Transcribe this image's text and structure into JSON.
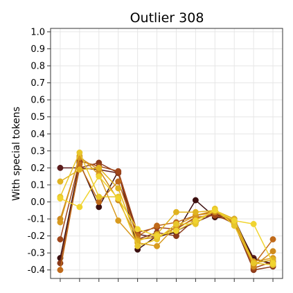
{
  "chart_data": {
    "type": "line",
    "title": "Outlier 308",
    "xlabel": "",
    "ylabel": "With special tokens",
    "ylim": [
      -0.45,
      1.02
    ],
    "yticks": [
      1.0,
      0.9,
      0.8,
      0.7,
      0.6,
      0.5,
      0.4,
      0.3,
      0.2,
      0.1,
      0.0,
      -0.1,
      -0.2,
      -0.3,
      -0.4
    ],
    "ytick_labels": [
      "1.0",
      "0.9",
      "0.8",
      "0.7",
      "0.6",
      "0.5",
      "0.4",
      "0.3",
      "0.2",
      "0.1",
      "0.0",
      "-0.1",
      "-0.2",
      "-0.3",
      "-0.4"
    ],
    "x": [
      0,
      1,
      2,
      3,
      4,
      5,
      6,
      7,
      8,
      9,
      10,
      11
    ],
    "x_tick_labels": [
      "",
      "",
      "",
      "",
      "",
      "",
      "",
      "",
      "",
      "",
      "",
      ""
    ],
    "grid": true,
    "legend": "none",
    "series": [
      {
        "color": "#5c1d1d",
        "values": [
          0.2,
          0.2,
          0.19,
          0.17,
          -0.19,
          -0.21,
          -0.17,
          -0.12,
          -0.07,
          -0.11,
          -0.33,
          -0.37
        ]
      },
      {
        "color": "#3d1010",
        "values": [
          -0.33,
          0.23,
          -0.03,
          0.18,
          -0.28,
          -0.2,
          -0.18,
          0.01,
          -0.09,
          -0.1,
          -0.34,
          -0.36
        ]
      },
      {
        "color": "#8a3a1a",
        "values": [
          -0.36,
          0.2,
          0.23,
          0.17,
          -0.22,
          -0.18,
          -0.2,
          -0.1,
          -0.07,
          -0.13,
          -0.4,
          -0.38
        ]
      },
      {
        "color": "#a0461a",
        "values": [
          -0.22,
          0.24,
          0.21,
          0.18,
          -0.18,
          -0.15,
          -0.16,
          -0.09,
          -0.08,
          -0.12,
          -0.39,
          -0.35
        ]
      },
      {
        "color": "#c06a1a",
        "values": [
          -0.4,
          0.22,
          0.0,
          0.12,
          -0.2,
          -0.14,
          -0.12,
          -0.08,
          -0.06,
          -0.11,
          -0.37,
          -0.22
        ]
      },
      {
        "color": "#cf8a1c",
        "values": [
          -0.1,
          0.26,
          0.19,
          0.01,
          -0.22,
          -0.21,
          -0.15,
          -0.1,
          -0.06,
          -0.12,
          -0.38,
          -0.29
        ]
      },
      {
        "color": "#d89a1e",
        "values": [
          -0.12,
          0.27,
          0.16,
          -0.11,
          -0.24,
          -0.26,
          -0.14,
          -0.08,
          -0.05,
          -0.12,
          -0.35,
          -0.33
        ]
      },
      {
        "color": "#e0b320",
        "values": [
          0.12,
          0.19,
          0.2,
          0.08,
          -0.23,
          -0.19,
          -0.06,
          -0.06,
          -0.05,
          -0.1,
          -0.36,
          -0.34
        ]
      },
      {
        "color": "#e8c62a",
        "values": [
          0.03,
          0.29,
          0.03,
          0.03,
          -0.26,
          -0.22,
          -0.13,
          -0.13,
          -0.04,
          -0.14,
          -0.36,
          -0.37
        ]
      },
      {
        "color": "#f0d430",
        "values": [
          0.02,
          -0.03,
          0.15,
          0.02,
          -0.16,
          -0.2,
          -0.17,
          -0.11,
          -0.05,
          -0.11,
          -0.13,
          -0.36
        ]
      }
    ]
  }
}
